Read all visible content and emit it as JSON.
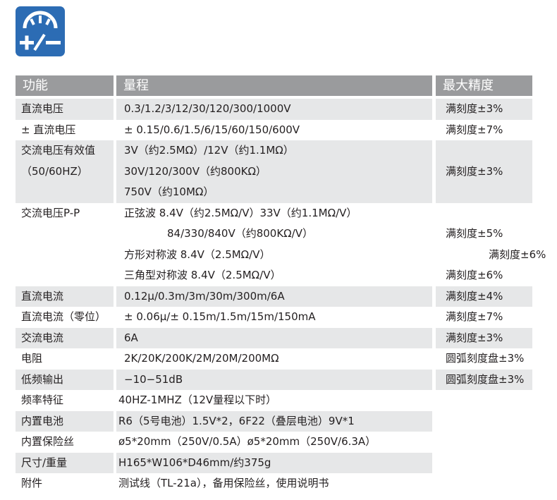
{
  "header": {
    "columns": [
      "功能",
      "量程",
      "最大精度"
    ]
  },
  "rows": [
    {
      "function": [
        "直流电压"
      ],
      "range": [
        "0.3/1.2/3/12/30/120/300/1000V"
      ],
      "accuracy": [
        "满刻度±3%"
      ]
    },
    {
      "function": [
        "± 直流电压"
      ],
      "range": [
        "± 0.15/0.6/1.5/6/15/60/150/600V"
      ],
      "accuracy": [
        "满刻度±7%"
      ]
    },
    {
      "function": [
        "交流电压有效值",
        "（50/60HZ）"
      ],
      "range": [
        "3V（约2.5MΩ）/12V（约1.1MΩ）",
        "30V/120/300V（约800KΩ）",
        "750V（约10MΩ）"
      ],
      "accuracy": [
        "满刻度±3%"
      ]
    },
    {
      "function": [
        "交流电压P-P"
      ],
      "range": [
        "正弦波 8.4V（约2.5MΩ/V）33V（约1.1MΩ/V）",
        "84/330/840V（约800KΩ/V）",
        "方形对称波 8.4V（2.5MΩ/V）",
        "三角型对称波 8.4V（2.5MΩ/V）"
      ],
      "accuracy": [
        "满刻度±5%",
        "满刻度±6%",
        "满刻度±6%"
      ]
    },
    {
      "function": [
        "直流电流"
      ],
      "range": [
        "0.12μ/0.3m/3m/30m/300m/6A"
      ],
      "accuracy": [
        "满刻度±4%"
      ]
    },
    {
      "function": [
        "直流电流（零位）"
      ],
      "range": [
        "± 0.06μ/± 0.15m/1.5m/15m/150mA"
      ],
      "accuracy": [
        "满刻度±7%"
      ]
    },
    {
      "function": [
        "交流电流"
      ],
      "range": [
        "6A"
      ],
      "accuracy": [
        "满刻度±3%"
      ]
    },
    {
      "function": [
        "电阻"
      ],
      "range": [
        "2K/20K/200K/2M/20M/200MΩ"
      ],
      "accuracy": [
        "圆弧刻度盘±3%"
      ]
    },
    {
      "function": [
        "低频输出"
      ],
      "range": [
        "−10−51dB"
      ],
      "accuracy": [
        "圆弧刻度盘±3%"
      ]
    },
    {
      "function": [
        "频率特征"
      ],
      "range": [
        "40HZ-1MHZ（12V量程以下时）"
      ]
    },
    {
      "function": [
        "内置电池"
      ],
      "range": [
        "R6（5号电池）1.5V*2，6F22（叠层电池）9V*1"
      ]
    },
    {
      "function": [
        "内置保险丝"
      ],
      "range": [
        "ø5*20mm（250V/0.5A）ø5*20mm（250V/6.3A）"
      ]
    },
    {
      "function": [
        "尺寸/重量"
      ],
      "range": [
        "H165*W106*D46mm/约375g"
      ]
    },
    {
      "function": [
        "附件"
      ],
      "range": [
        "测试线（TL-21a），备用保险丝，使用说明书"
      ]
    }
  ]
}
